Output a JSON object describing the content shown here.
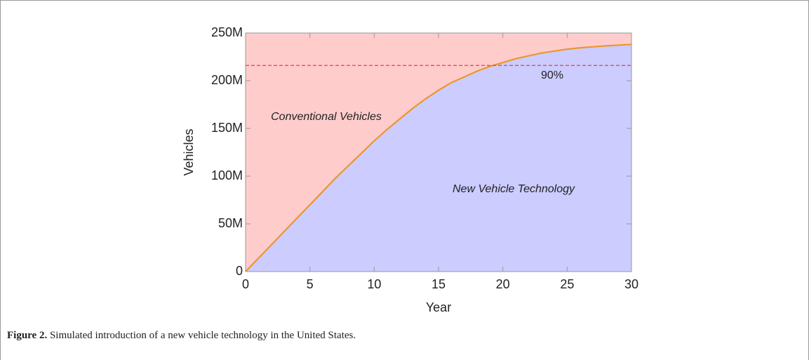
{
  "chart_data": {
    "type": "area",
    "x_label": "Year",
    "y_label": "Vehicles",
    "x": [
      0,
      1,
      2,
      3,
      4,
      5,
      6,
      7,
      8,
      9,
      10,
      11,
      12,
      13,
      14,
      15,
      16,
      17,
      18,
      19,
      20,
      21,
      22,
      23,
      24,
      25,
      26,
      27,
      28,
      29,
      30
    ],
    "series": [
      {
        "name": "New Vehicle Technology",
        "color": "#ccccff",
        "line_color": "#e8982f",
        "values": [
          0,
          14,
          28,
          42,
          56,
          70,
          84,
          98,
          111,
          124,
          137,
          149,
          160,
          171,
          181,
          190,
          198,
          204,
          210,
          215,
          219,
          223,
          226,
          229,
          231,
          233,
          234.5,
          235.5,
          236.5,
          237.3,
          238
        ]
      }
    ],
    "upper_region": {
      "name": "Conventional Vehicles",
      "color": "#ffcccc"
    },
    "threshold": {
      "value": 216,
      "label": "90%",
      "color": "#e8403a"
    },
    "xlim": [
      0,
      30
    ],
    "xticks": [
      0,
      5,
      10,
      15,
      20,
      25,
      30
    ],
    "ylim": [
      0,
      250
    ],
    "yticks": [
      0,
      {
        "value": 50,
        "label": "50M"
      },
      {
        "value": 100,
        "label": "100M"
      },
      {
        "value": 150,
        "label": "150M"
      },
      {
        "value": 200,
        "label": "200M"
      },
      {
        "value": 250,
        "label": "250M"
      }
    ]
  },
  "caption": {
    "label": "Figure 2.",
    "text": "Simulated introduction of a new vehicle technology in the United States."
  }
}
